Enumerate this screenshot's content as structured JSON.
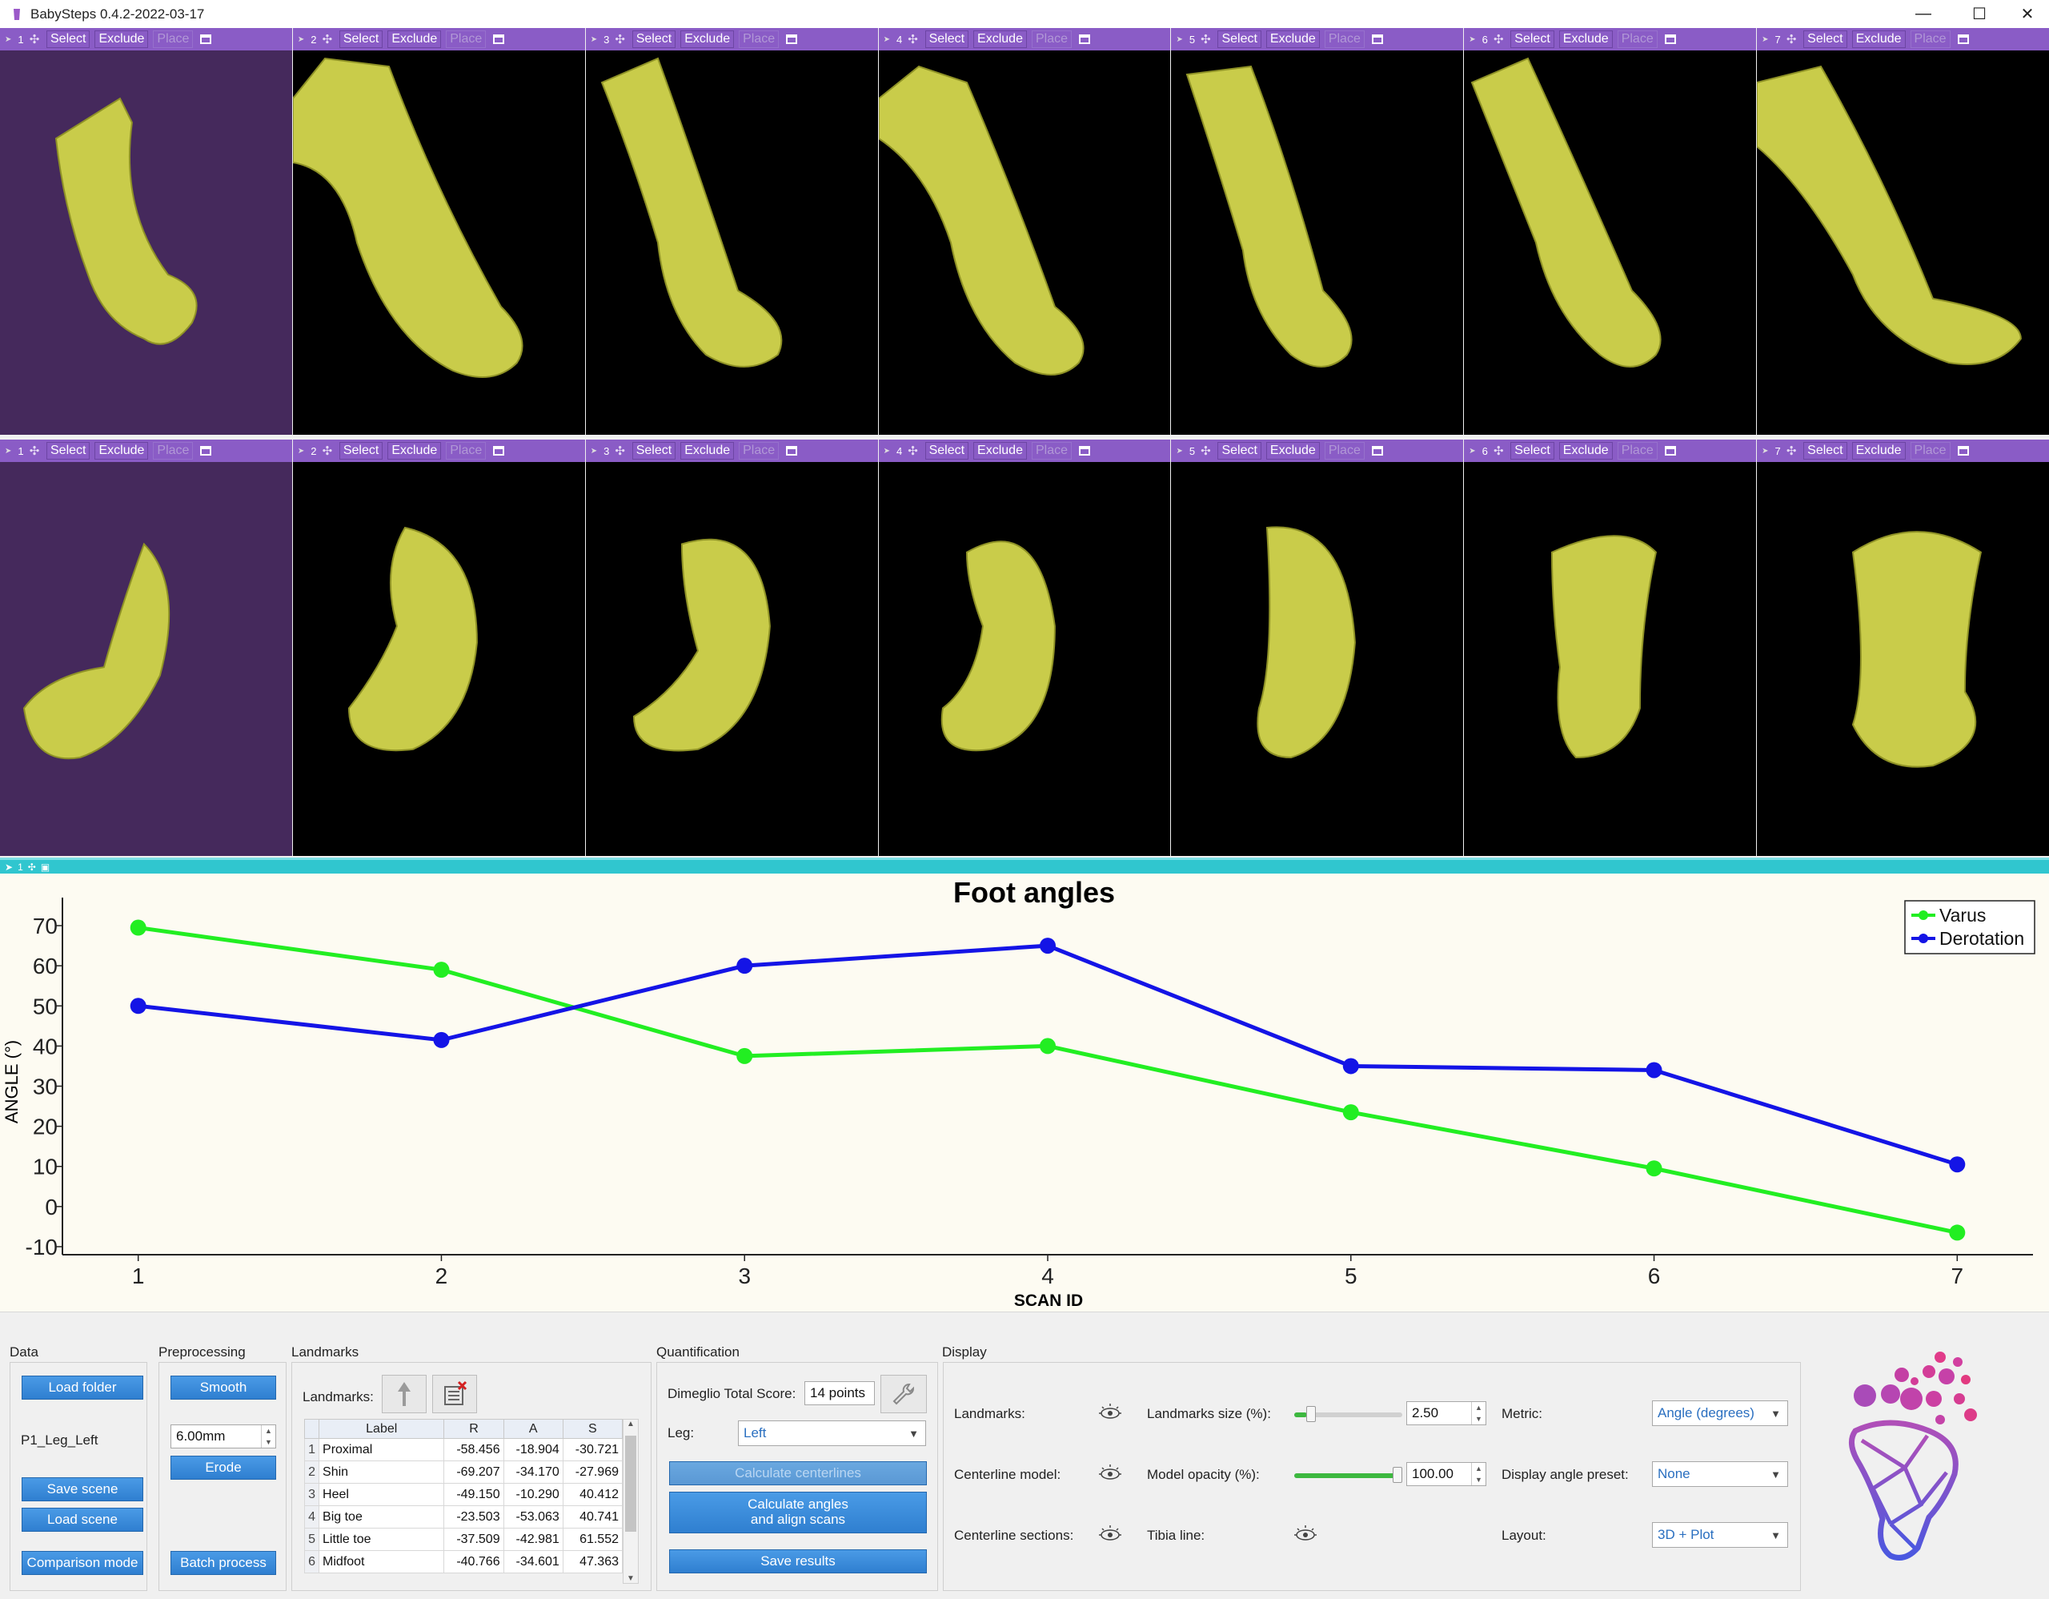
{
  "window": {
    "title": "BabySteps 0.4.2-2022-03-17"
  },
  "view_toolbar": {
    "select": "Select",
    "exclude": "Exclude",
    "place": "Place"
  },
  "views_top": [
    {
      "num": "1"
    },
    {
      "num": "2"
    },
    {
      "num": "3"
    },
    {
      "num": "4"
    },
    {
      "num": "5"
    },
    {
      "num": "6"
    },
    {
      "num": "7"
    }
  ],
  "views_bottom": [
    {
      "num": "1"
    },
    {
      "num": "2"
    },
    {
      "num": "3"
    },
    {
      "num": "4"
    },
    {
      "num": "5"
    },
    {
      "num": "6"
    },
    {
      "num": "7"
    }
  ],
  "plot_panel": {
    "num": "1"
  },
  "colors": {
    "model": "#c9cc4a",
    "header": "#8a5cc6",
    "selected_bg": "#45295c",
    "plot_bar": "#30c6cf",
    "varus": "#22ee22",
    "derotation": "#1414e6"
  },
  "chart_data": {
    "type": "line",
    "title": "Foot angles",
    "xlabel": "SCAN ID",
    "ylabel": "ANGLE (°)",
    "x": [
      1,
      2,
      3,
      4,
      5,
      6,
      7
    ],
    "ylim": [
      -12,
      73
    ],
    "yticks": [
      -10,
      0,
      10,
      20,
      30,
      40,
      50,
      60,
      70
    ],
    "series": [
      {
        "name": "Varus",
        "color": "#22ee22",
        "values": [
          69.5,
          59,
          37.5,
          40,
          23.5,
          9.5,
          -6.5
        ]
      },
      {
        "name": "Derotation",
        "color": "#1414e6",
        "values": [
          50,
          41.5,
          60,
          65,
          35,
          34,
          10.5
        ]
      }
    ],
    "legend": "top-right",
    "grid": false
  },
  "data_group": {
    "title": "Data",
    "load_folder": "Load folder",
    "dataset": "P1_Leg_Left",
    "save_scene": "Save scene",
    "load_scene": "Load scene",
    "comparison_mode": "Comparison mode"
  },
  "preprocessing": {
    "title": "Preprocessing",
    "smooth": "Smooth",
    "erode_value": "6.00mm",
    "erode": "Erode",
    "batch": "Batch process"
  },
  "landmarks": {
    "title": "Landmarks",
    "label": "Landmarks:",
    "columns": [
      "Label",
      "R",
      "A",
      "S"
    ],
    "rows": [
      {
        "idx": "1",
        "label": "Proximal",
        "r": "-58.456",
        "a": "-18.904",
        "s": "-30.721"
      },
      {
        "idx": "2",
        "label": "Shin",
        "r": "-69.207",
        "a": "-34.170",
        "s": "-27.969"
      },
      {
        "idx": "3",
        "label": "Heel",
        "r": "-49.150",
        "a": "-10.290",
        "s": "40.412"
      },
      {
        "idx": "4",
        "label": "Big toe",
        "r": "-23.503",
        "a": "-53.063",
        "s": "40.741"
      },
      {
        "idx": "5",
        "label": "Little toe",
        "r": "-37.509",
        "a": "-42.981",
        "s": "61.552"
      },
      {
        "idx": "6",
        "label": "Midfoot",
        "r": "-40.766",
        "a": "-34.601",
        "s": "47.363"
      }
    ]
  },
  "quant": {
    "title": "Quantification",
    "dimeglio_label": "Dimeglio Total Score:",
    "dimeglio_value": "14 points",
    "leg_label": "Leg:",
    "leg_value": "Left",
    "calc_centerlines": "Calculate centerlines",
    "calc_angles_1": "Calculate angles",
    "calc_angles_2": "and align scans",
    "save_results": "Save results"
  },
  "display": {
    "title": "Display",
    "landmarks": "Landmarks:",
    "centerline_model": "Centerline model:",
    "centerline_sections": "Centerline sections:",
    "landmarks_size_label": "Landmarks size (%):",
    "landmarks_size_value": "2.50",
    "landmarks_size_fraction": 0.12,
    "model_opacity_label": "Model opacity (%):",
    "model_opacity_value": "100.00",
    "model_opacity_fraction": 1.0,
    "tibia_line": "Tibia line:",
    "metric_label": "Metric:",
    "metric_value": "Angle (degrees)",
    "preset_label": "Display angle preset:",
    "preset_value": "None",
    "layout_label": "Layout:",
    "layout_value": "3D + Plot"
  }
}
